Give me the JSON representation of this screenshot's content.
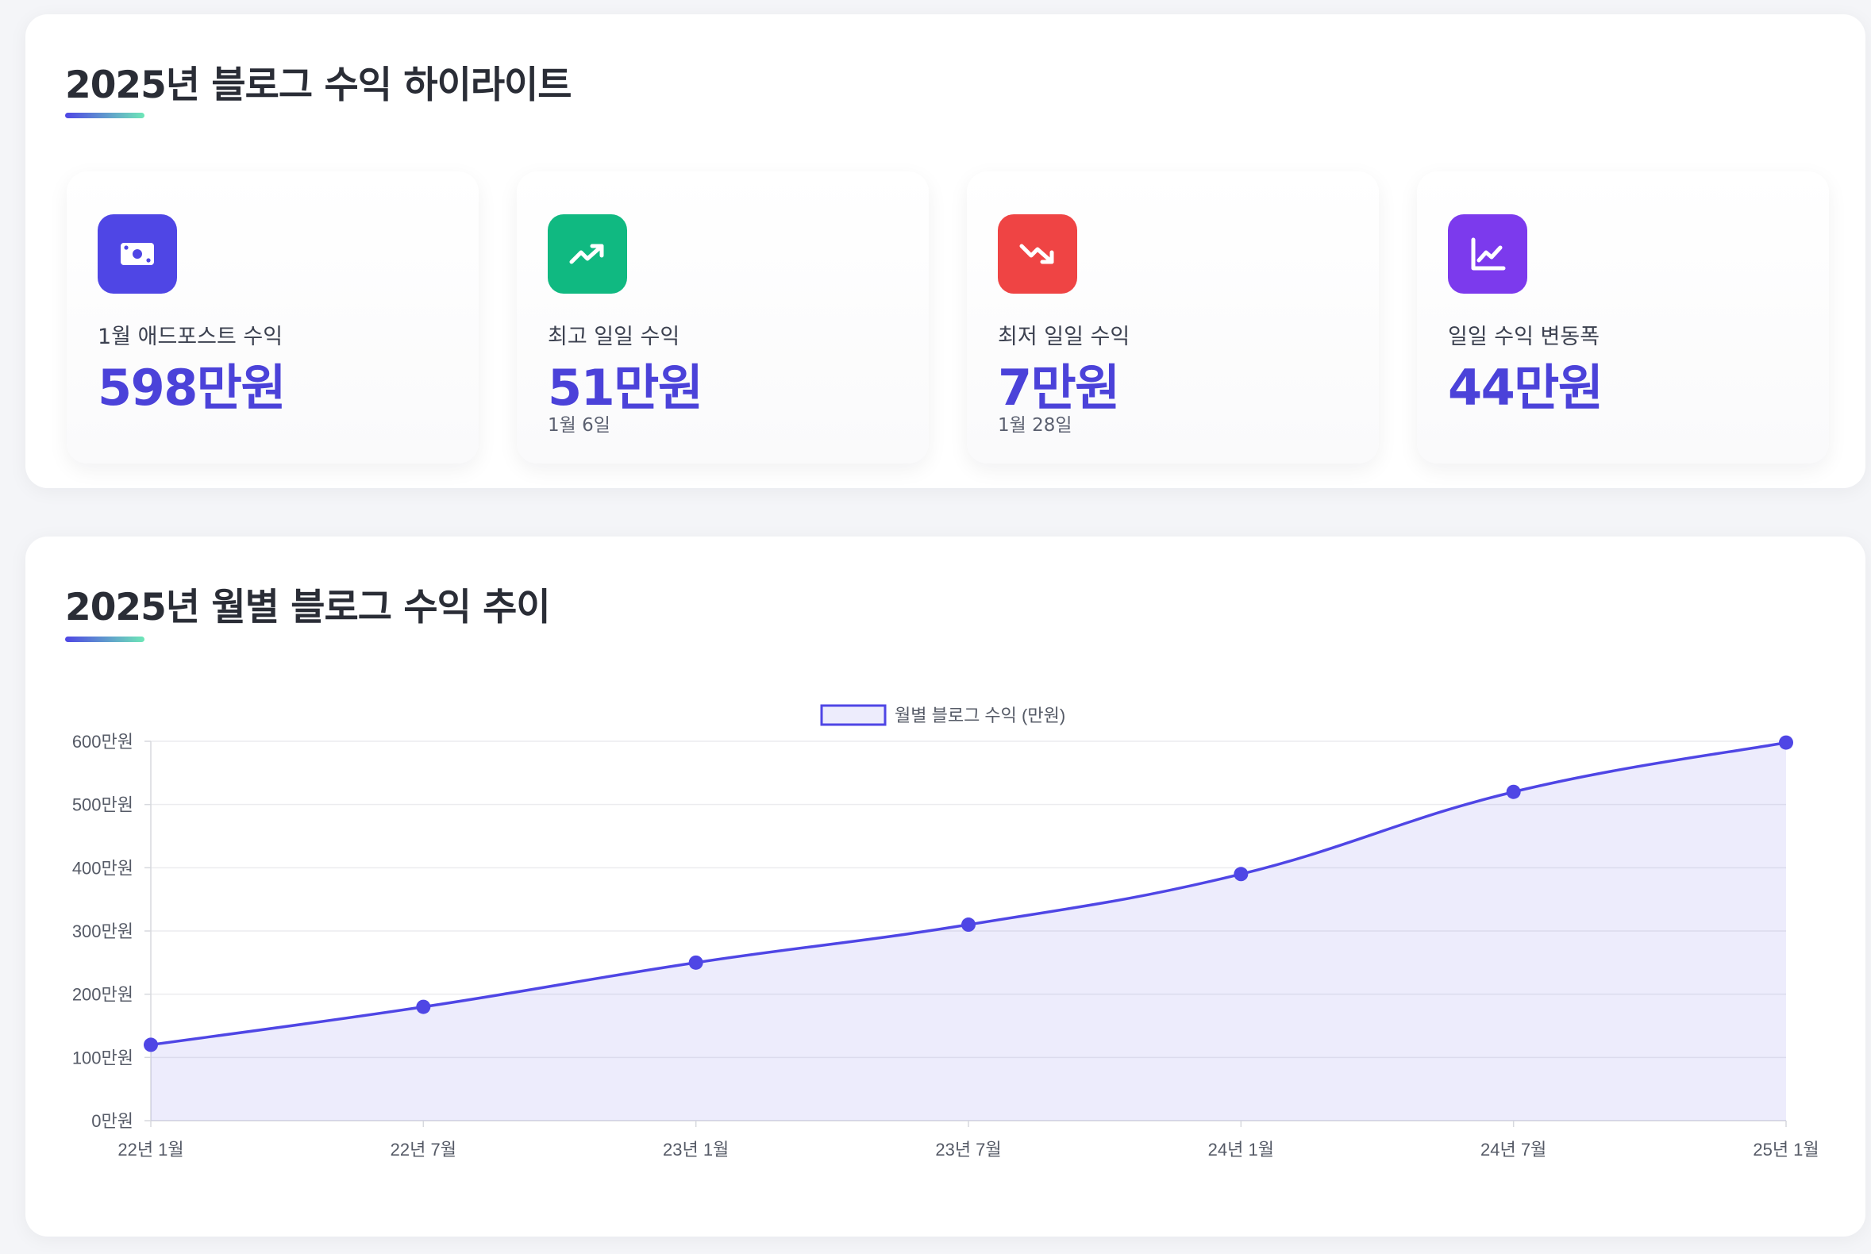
{
  "highlights": {
    "title": "2025년 블로그 수익 하이라이트",
    "stats": [
      {
        "icon": "money-icon",
        "color": "#4f46e5",
        "label": "1월 애드포스트 수익",
        "value": "598만원",
        "date": ""
      },
      {
        "icon": "trending-up-icon",
        "color": "#10b981",
        "label": "최고 일일 수익",
        "value": "51만원",
        "date": "1월 6일"
      },
      {
        "icon": "trending-down-icon",
        "color": "#ef4444",
        "label": "최저 일일 수익",
        "value": "7만원",
        "date": "1월 28일"
      },
      {
        "icon": "line-chart-icon",
        "color": "#7c3aed",
        "label": "일일 수익 변동폭",
        "value": "44만원",
        "date": ""
      }
    ]
  },
  "trend": {
    "title": "2025년 월별 블로그 수익 추이"
  },
  "chart_data": {
    "type": "area",
    "title": "",
    "xlabel": "",
    "ylabel": "",
    "categories": [
      "22년 1월",
      "22년 7월",
      "23년 1월",
      "23년 7월",
      "24년 1월",
      "24년 7월",
      "25년 1월"
    ],
    "series": [
      {
        "name": "월별 블로그 수익 (만원)",
        "values": [
          120,
          180,
          250,
          310,
          390,
          520,
          598
        ],
        "color": "#4f46e5",
        "fill": "rgba(79, 70, 229, 0.1)"
      }
    ],
    "ylim": [
      0,
      600
    ],
    "yticks": [
      0,
      100,
      200,
      300,
      400,
      500,
      600
    ],
    "ytick_labels": [
      "0만원",
      "100만원",
      "200만원",
      "300만원",
      "400만원",
      "500만원",
      "600만원"
    ],
    "grid": true,
    "legend": "top-center"
  }
}
